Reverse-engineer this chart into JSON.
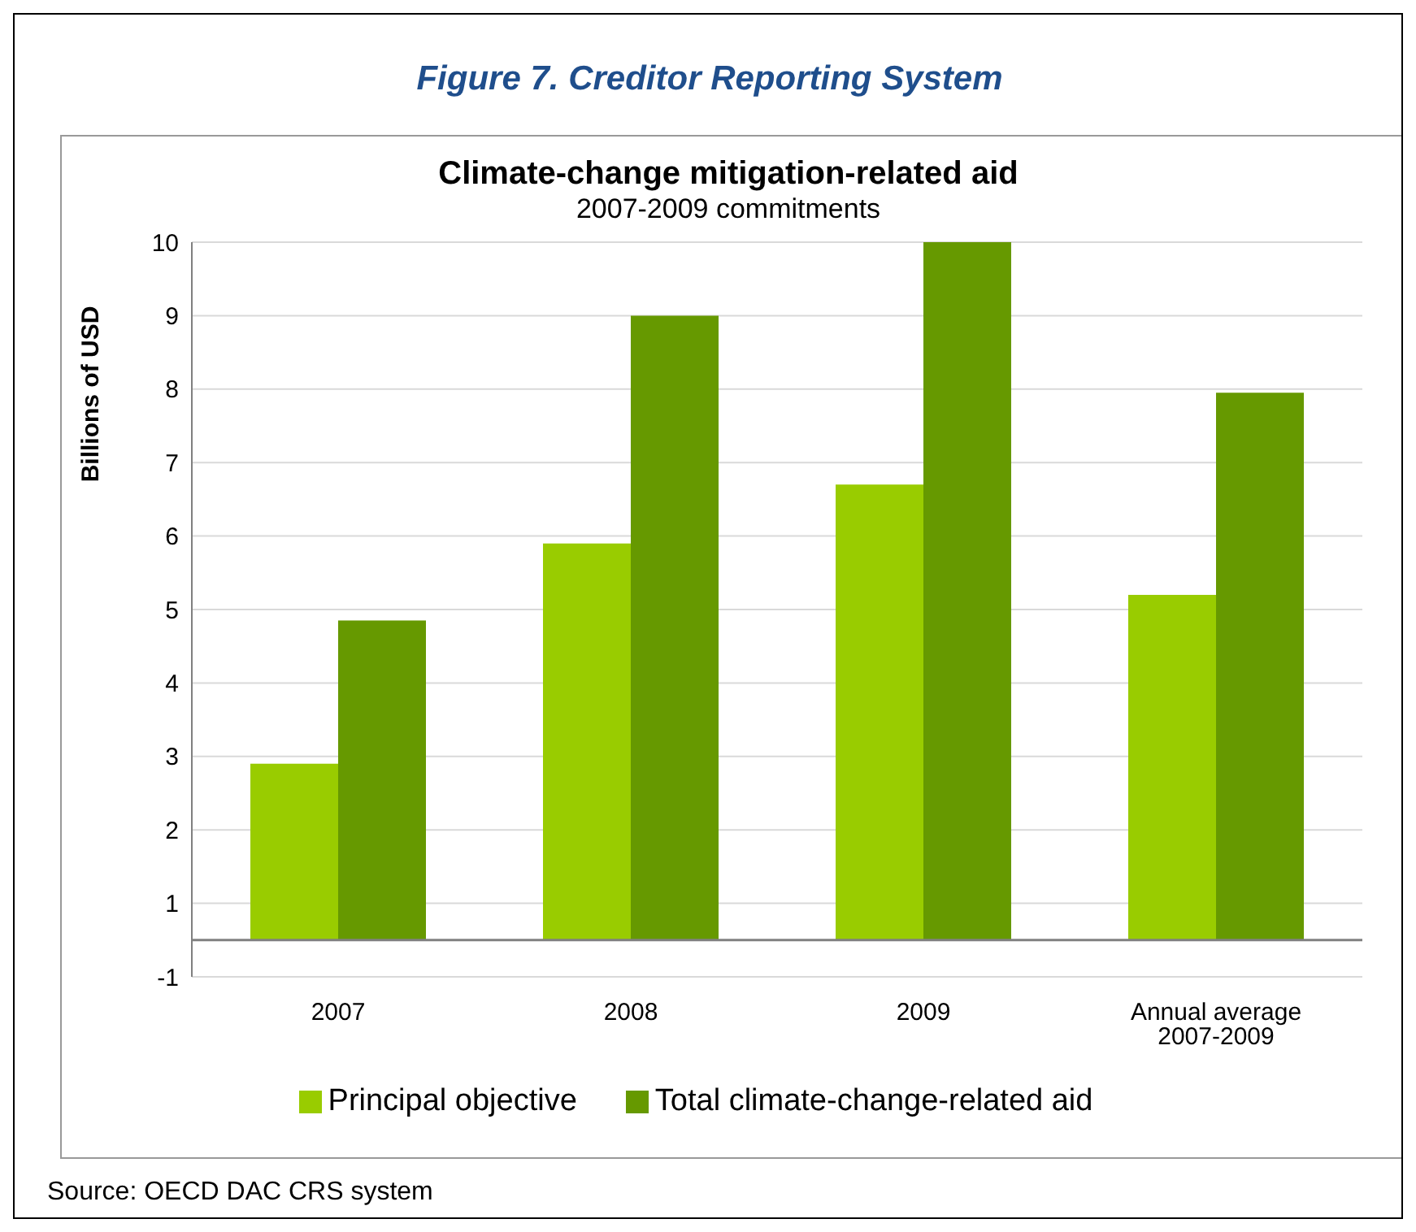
{
  "chart_data": {
    "type": "bar",
    "title": "Climate-change mitigation-related aid",
    "subtitle": "2007-2009 commitments",
    "ylabel": "Billions of USD",
    "annotations": [
      "Figure 7. Creditor Reporting System",
      "Source: OECD DAC CRS system"
    ],
    "categories": [
      "2007",
      "2008",
      "2009",
      "Annual average 2007-2009"
    ],
    "series": [
      {
        "name": "Principal objective",
        "color": "#99cc00",
        "values": [
          2.4,
          5.4,
          6.2,
          4.7
        ]
      },
      {
        "name": "Total climate-change-related aid",
        "color": "#669900",
        "values": [
          4.35,
          8.5,
          9.5,
          7.45
        ]
      }
    ],
    "ylim": [
      -0.5,
      9.5
    ],
    "yticks": [
      {
        "value": -0.5,
        "label": "-1"
      },
      {
        "value": 0.5,
        "label": "1"
      },
      {
        "value": 1.5,
        "label": "2"
      },
      {
        "value": 2.5,
        "label": "3"
      },
      {
        "value": 3.5,
        "label": "4"
      },
      {
        "value": 4.5,
        "label": "5"
      },
      {
        "value": 5.5,
        "label": "6"
      },
      {
        "value": 6.5,
        "label": "7"
      },
      {
        "value": 7.5,
        "label": "8"
      },
      {
        "value": 8.5,
        "label": "9"
      },
      {
        "value": 9.5,
        "label": "10"
      }
    ],
    "ref_lines": [
      {
        "axis": "y",
        "value": 0,
        "color": "#808080"
      }
    ],
    "grid": "y",
    "legend": "bottom"
  }
}
